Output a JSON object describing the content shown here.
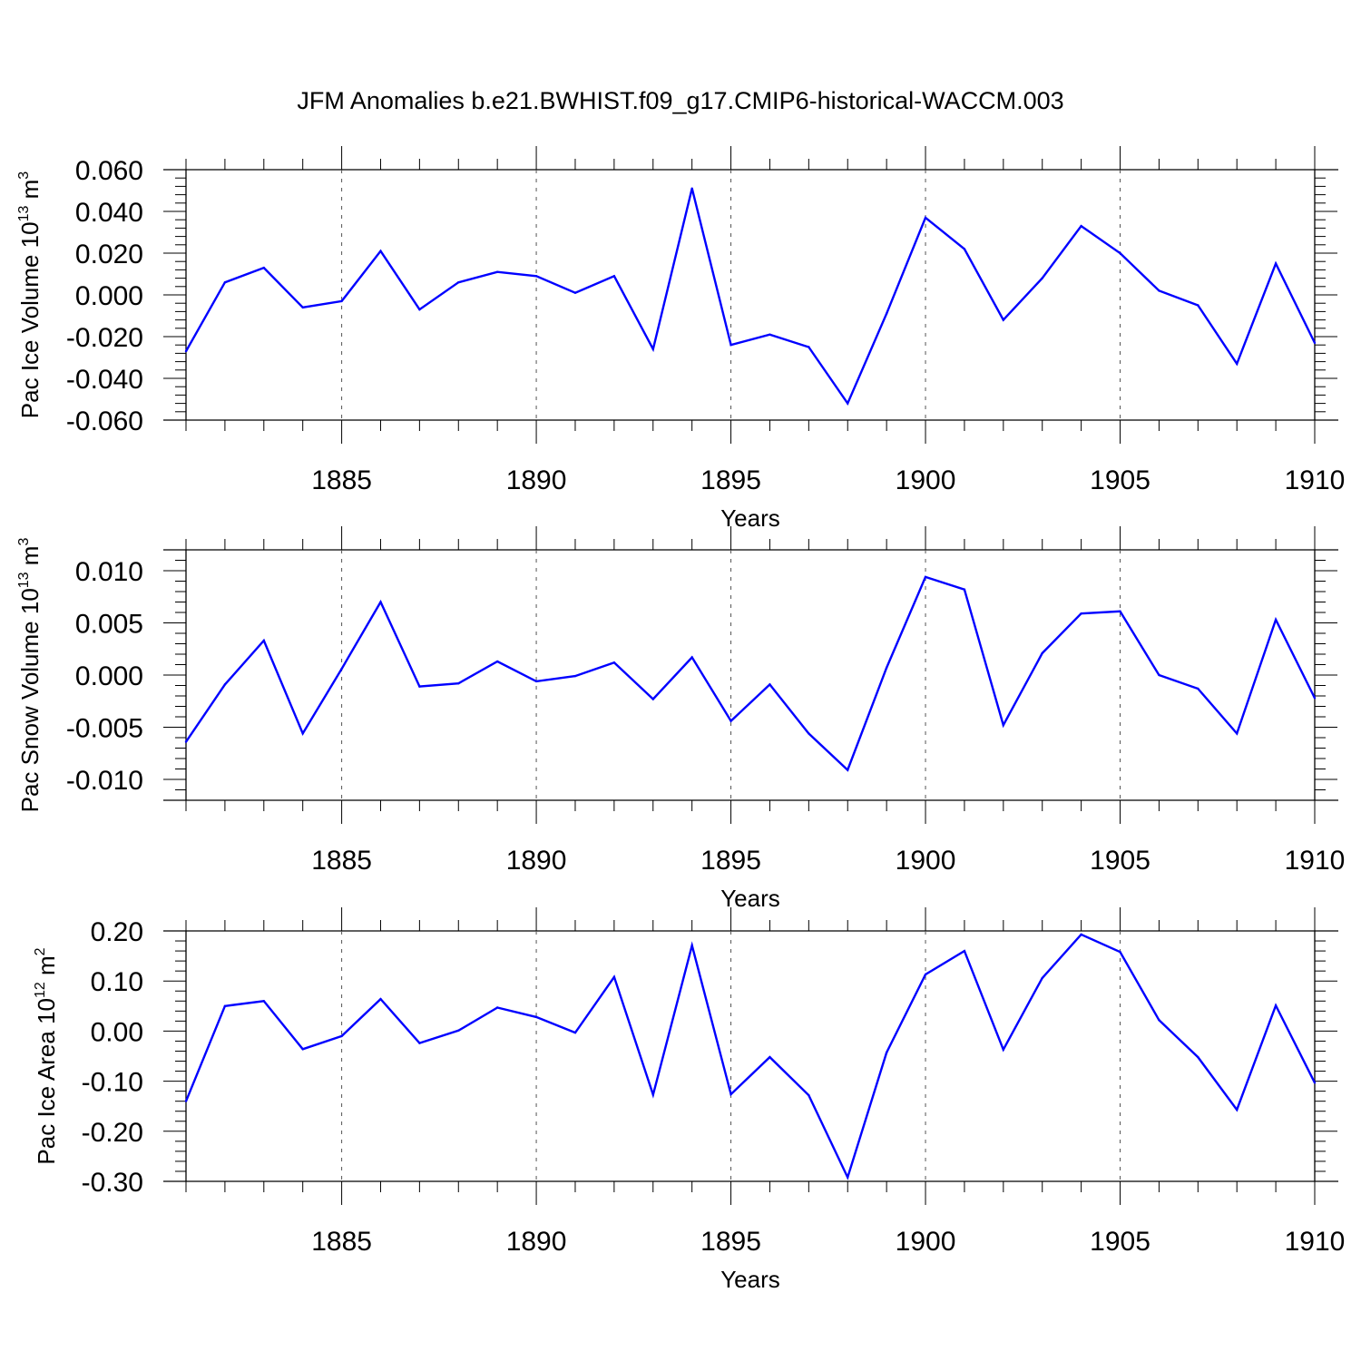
{
  "figure": {
    "title": "JFM Anomalies b.e21.BWHIST.f09_g17.CMIP6-historical-WACCM.003"
  },
  "chart_data": [
    {
      "type": "line",
      "title": "",
      "xlabel": "Years",
      "ylabel": {
        "text": "Pac Ice Volume 10",
        "exp": "13",
        "unit": " m",
        "unit_exp": "3"
      },
      "x": [
        1881,
        1882,
        1883,
        1884,
        1885,
        1886,
        1887,
        1888,
        1889,
        1890,
        1891,
        1892,
        1893,
        1894,
        1895,
        1896,
        1897,
        1898,
        1899,
        1900,
        1901,
        1902,
        1903,
        1904,
        1905,
        1906,
        1907,
        1908,
        1909,
        1910
      ],
      "series": [
        {
          "name": "Pac Ice Volume",
          "color": "#0000ff",
          "values": [
            -0.027,
            0.006,
            0.013,
            -0.006,
            -0.003,
            0.021,
            -0.007,
            0.006,
            0.011,
            0.009,
            0.001,
            0.009,
            -0.026,
            0.051,
            -0.024,
            -0.019,
            -0.025,
            -0.052,
            -0.009,
            0.037,
            0.022,
            -0.012,
            0.008,
            0.033,
            0.02,
            0.002,
            -0.005,
            -0.033,
            0.015,
            -0.023
          ]
        }
      ],
      "xlim": [
        1881,
        1910
      ],
      "ylim": [
        -0.06,
        0.06
      ],
      "yticks": [
        -0.06,
        -0.04,
        -0.02,
        0.0,
        0.02,
        0.04,
        0.06
      ],
      "ytick_labels": [
        "-0.060",
        "-0.040",
        "-0.020",
        "0.000",
        "0.020",
        "0.040",
        "0.060"
      ],
      "xticks": [
        1885,
        1890,
        1895,
        1900,
        1905,
        1910
      ],
      "xtick_labels": [
        "1885",
        "1890",
        "1895",
        "1900",
        "1905",
        "1910"
      ],
      "grid": "vertical dashed at major x ticks"
    },
    {
      "type": "line",
      "title": "",
      "xlabel": "Years",
      "ylabel": {
        "text": "Pac Snow Volume 10",
        "exp": "13",
        "unit": " m",
        "unit_exp": "3"
      },
      "x": [
        1881,
        1882,
        1883,
        1884,
        1885,
        1886,
        1887,
        1888,
        1889,
        1890,
        1891,
        1892,
        1893,
        1894,
        1895,
        1896,
        1897,
        1898,
        1899,
        1900,
        1901,
        1902,
        1903,
        1904,
        1905,
        1906,
        1907,
        1908,
        1909,
        1910
      ],
      "series": [
        {
          "name": "Pac Snow Volume",
          "color": "#0000ff",
          "values": [
            -0.0064,
            -0.0009,
            0.0033,
            -0.0056,
            0.0006,
            0.007,
            -0.0011,
            -0.0008,
            0.0013,
            -0.0006,
            -0.0001,
            0.0012,
            -0.0023,
            0.0017,
            -0.0044,
            -0.0009,
            -0.0056,
            -0.0091,
            0.0007,
            0.0094,
            0.0082,
            -0.0048,
            0.0021,
            0.0059,
            0.0061,
            0.0,
            -0.0013,
            -0.0056,
            0.0053,
            -0.0022
          ]
        }
      ],
      "xlim": [
        1881,
        1910
      ],
      "ylim": [
        -0.012,
        0.012
      ],
      "yticks": [
        -0.01,
        -0.005,
        0.0,
        0.005,
        0.01
      ],
      "ytick_labels": [
        "-0.010",
        "-0.005",
        "0.000",
        "0.005",
        "0.010"
      ],
      "xticks": [
        1885,
        1890,
        1895,
        1900,
        1905,
        1910
      ],
      "xtick_labels": [
        "1885",
        "1890",
        "1895",
        "1900",
        "1905",
        "1910"
      ],
      "grid": "vertical dashed at major x ticks"
    },
    {
      "type": "line",
      "title": "",
      "xlabel": "Years",
      "ylabel": {
        "text": "Pac Ice Area 10",
        "exp": "12",
        "unit": " m",
        "unit_exp": "2"
      },
      "x": [
        1881,
        1882,
        1883,
        1884,
        1885,
        1886,
        1887,
        1888,
        1889,
        1890,
        1891,
        1892,
        1893,
        1894,
        1895,
        1896,
        1897,
        1898,
        1899,
        1900,
        1901,
        1902,
        1903,
        1904,
        1905,
        1906,
        1907,
        1908,
        1909,
        1910
      ],
      "series": [
        {
          "name": "Pac Ice Area",
          "color": "#0000ff",
          "values": [
            -0.14,
            0.05,
            0.06,
            -0.036,
            -0.01,
            0.064,
            -0.024,
            0.001,
            0.047,
            0.028,
            -0.003,
            0.108,
            -0.127,
            0.171,
            -0.126,
            -0.052,
            -0.128,
            -0.292,
            -0.043,
            0.113,
            0.16,
            -0.037,
            0.106,
            0.193,
            0.158,
            0.022,
            -0.052,
            -0.157,
            0.051,
            -0.103
          ]
        }
      ],
      "xlim": [
        1881,
        1910
      ],
      "ylim": [
        -0.3,
        0.2
      ],
      "yticks": [
        -0.3,
        -0.2,
        -0.1,
        0.0,
        0.1,
        0.2
      ],
      "ytick_labels": [
        "-0.30",
        "-0.20",
        "-0.10",
        "0.00",
        "0.10",
        "0.20"
      ],
      "xticks": [
        1885,
        1890,
        1895,
        1900,
        1905,
        1910
      ],
      "xtick_labels": [
        "1885",
        "1890",
        "1895",
        "1900",
        "1905",
        "1910"
      ],
      "grid": "vertical dashed at major x ticks"
    }
  ]
}
